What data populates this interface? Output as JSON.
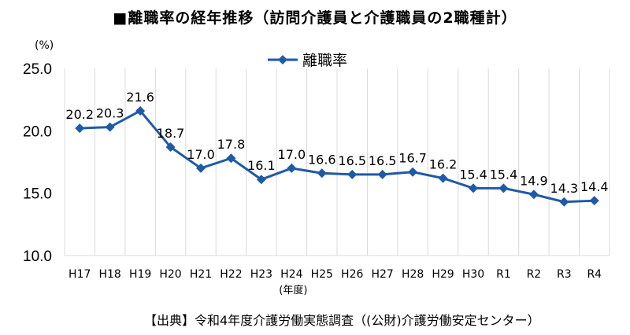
{
  "title": "■離職率の経年推移（訪問介護員と介護職員の2職種計）",
  "unit": "(%)",
  "source": "【出典】令和4年度介護労働実態調査（(公財)介護労働安定センター）",
  "colors": {
    "series": "#1F5AA6",
    "grid": "#D9D9D9"
  },
  "chart_data": {
    "type": "line",
    "title": "■離職率の経年推移（訪問介護員と介護職員の2職種計）",
    "xlabel": "(年度)",
    "ylabel": "(%)",
    "ylim": [
      10,
      25
    ],
    "yticks": [
      "10.0",
      "15.0",
      "20.0",
      "25.0"
    ],
    "grid": "vertical",
    "legend": "top-center",
    "categories": [
      "H17",
      "H18",
      "H19",
      "H20",
      "H21",
      "H22",
      "H23",
      "H24",
      "H25",
      "H26",
      "H27",
      "H28",
      "H29",
      "H30",
      "R1",
      "R2",
      "R3",
      "R4"
    ],
    "series": [
      {
        "name": "離職率",
        "values": [
          20.2,
          20.3,
          21.6,
          18.7,
          17.0,
          17.8,
          16.1,
          17.0,
          16.6,
          16.5,
          16.5,
          16.7,
          16.2,
          15.4,
          15.4,
          14.9,
          14.3,
          14.4
        ]
      }
    ],
    "data_labels": [
      "20.2",
      "20.3",
      "21.6",
      "18.7",
      "17.0",
      "17.8",
      "16.1",
      "17.0",
      "16.6",
      "16.5",
      "16.5",
      "16.7",
      "16.2",
      "15.4",
      "15.4",
      "14.9",
      "14.3",
      "14.4"
    ]
  }
}
